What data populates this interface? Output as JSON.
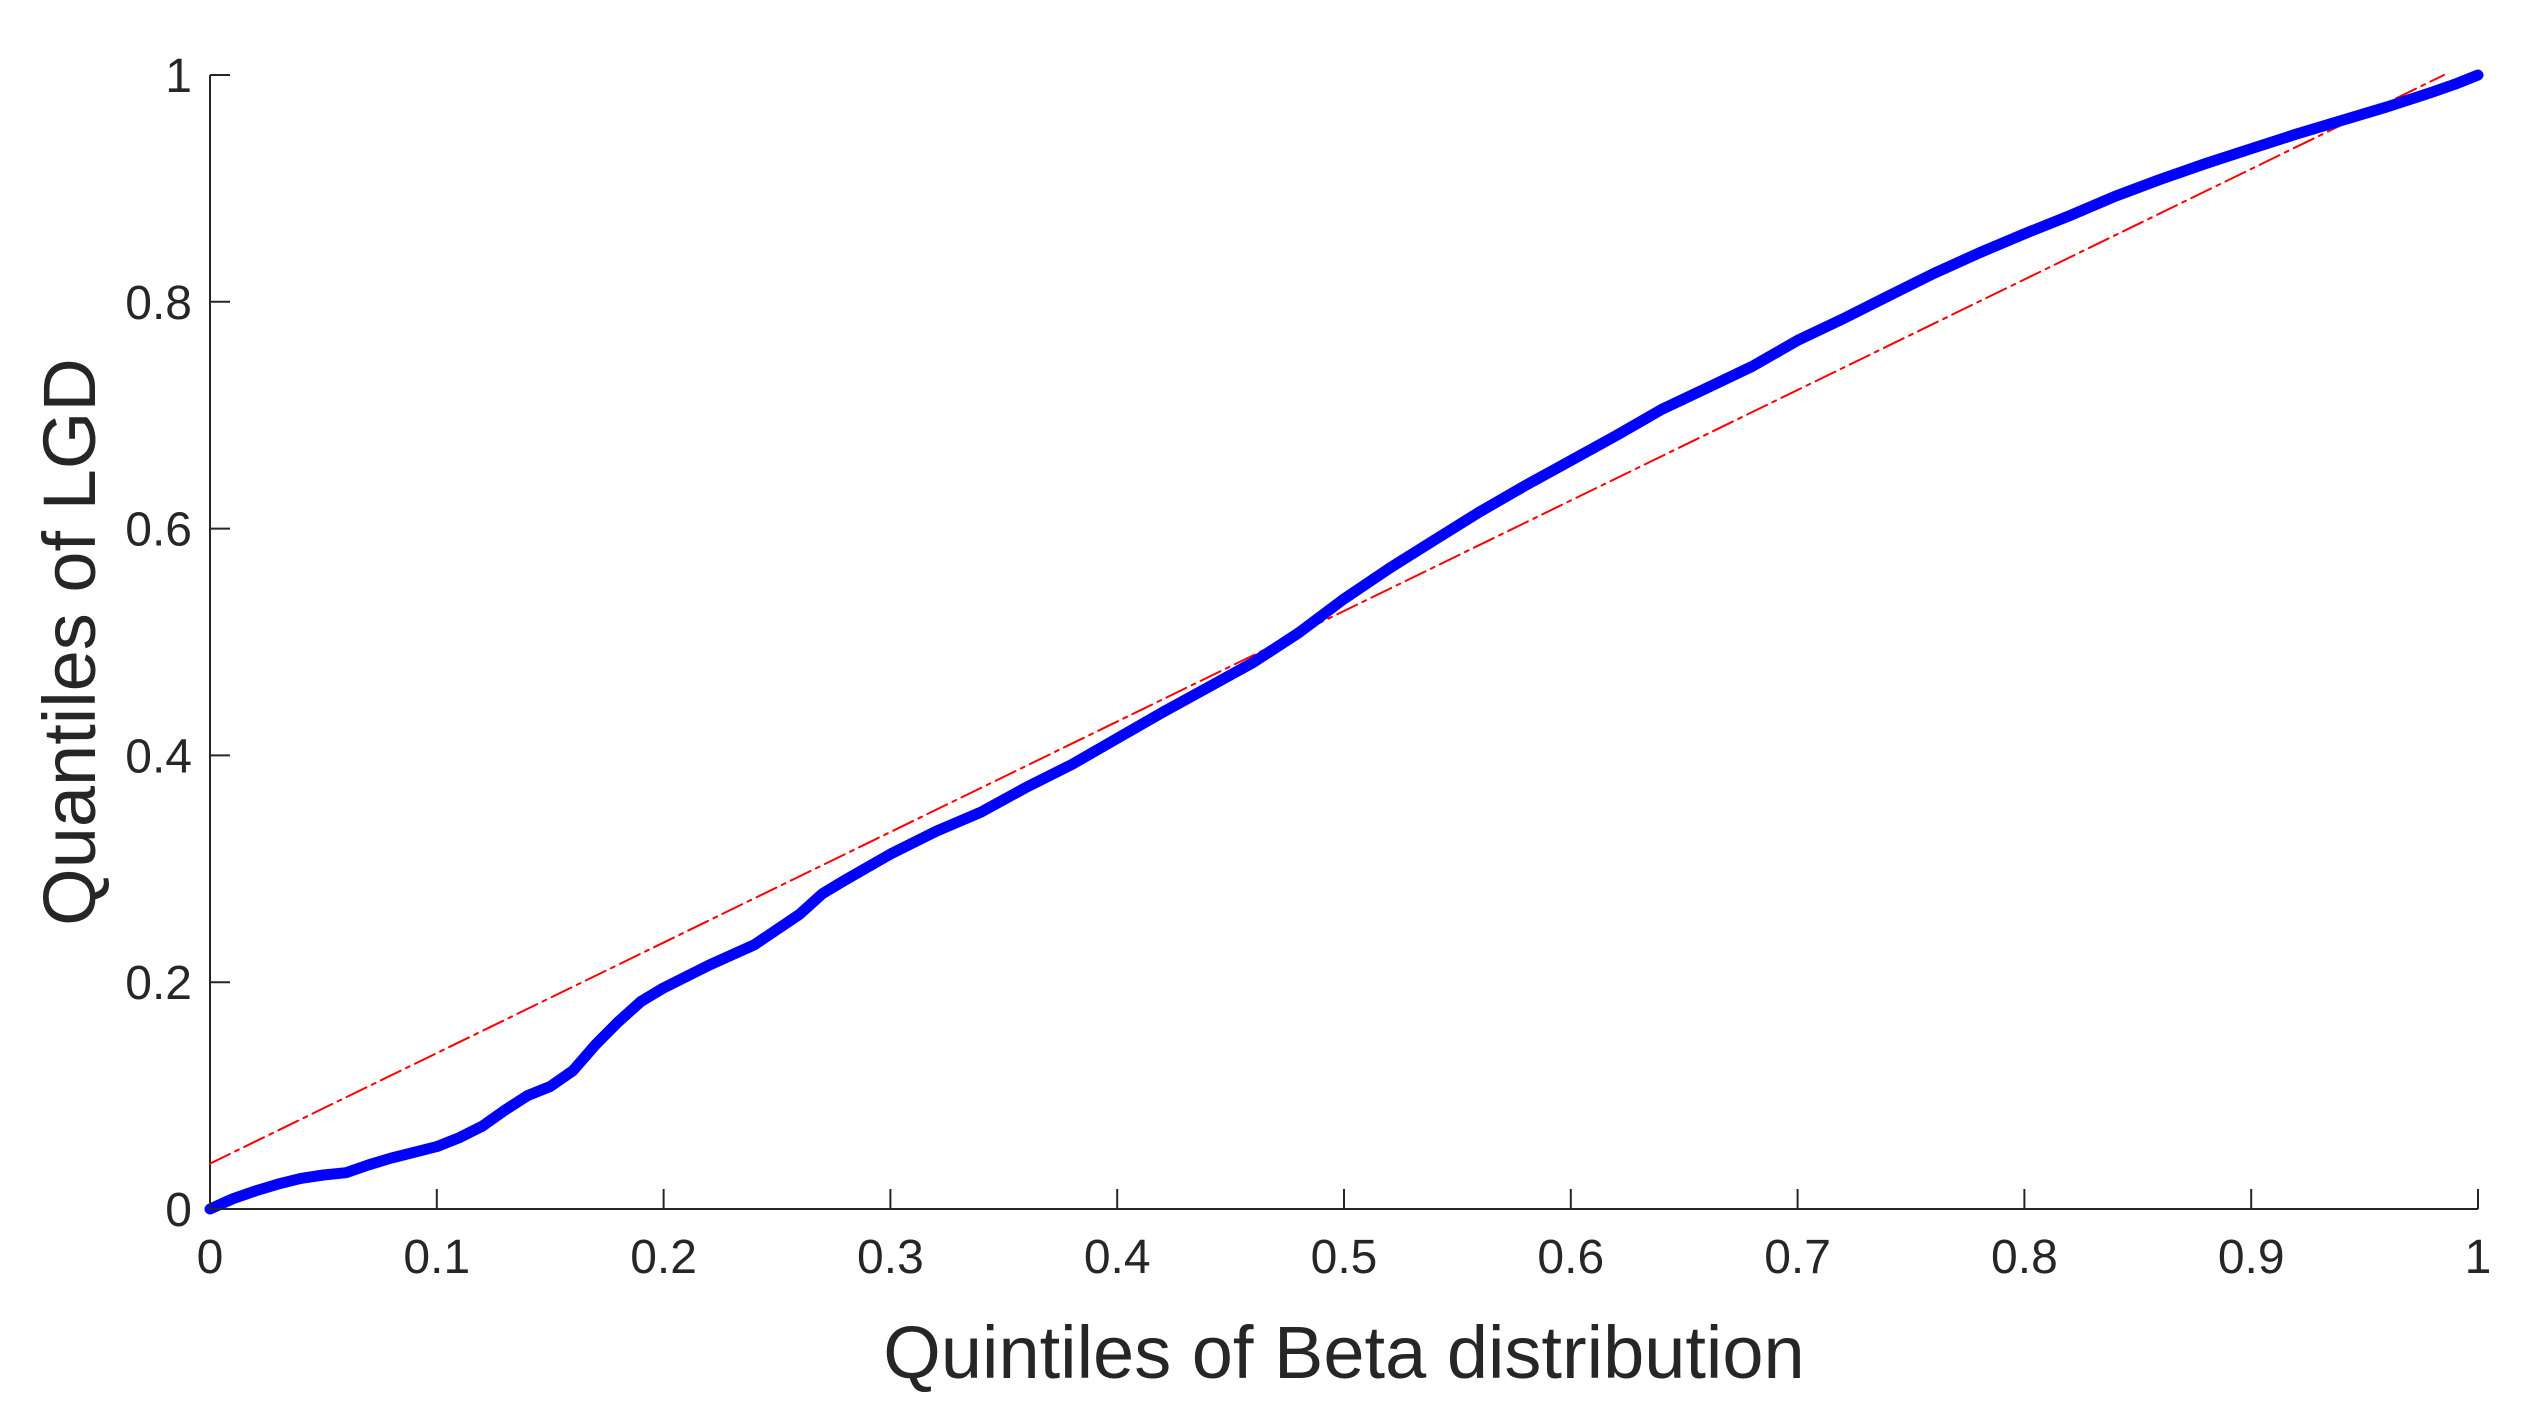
{
  "chart_data": {
    "type": "line",
    "title": "",
    "xlabel": "Quintiles of Beta distribution",
    "ylabel": "Quantiles of LGD",
    "xlim": [
      0,
      1
    ],
    "ylim": [
      0,
      1
    ],
    "x_ticks": [
      0,
      0.1,
      0.2,
      0.3,
      0.4,
      0.5,
      0.6,
      0.7,
      0.8,
      0.9,
      1
    ],
    "x_tick_labels": [
      "0",
      "0.1",
      "0.2",
      "0.3",
      "0.4",
      "0.5",
      "0.6",
      "0.7",
      "0.8",
      "0.9",
      "1"
    ],
    "y_ticks": [
      0,
      0.2,
      0.4,
      0.6,
      0.8,
      1
    ],
    "y_tick_labels": [
      "0",
      "0.2",
      "0.4",
      "0.6",
      "0.8",
      "1"
    ],
    "grid": false,
    "legend": "none",
    "series": [
      {
        "style": "thick solid",
        "color": "#0000ff",
        "x": [
          0,
          0.01,
          0.02,
          0.03,
          0.04,
          0.05,
          0.06,
          0.07,
          0.08,
          0.09,
          0.1,
          0.11,
          0.12,
          0.13,
          0.14,
          0.15,
          0.16,
          0.17,
          0.18,
          0.19,
          0.2,
          0.22,
          0.24,
          0.26,
          0.27,
          0.28,
          0.3,
          0.32,
          0.34,
          0.36,
          0.38,
          0.4,
          0.42,
          0.44,
          0.46,
          0.48,
          0.5,
          0.52,
          0.54,
          0.56,
          0.58,
          0.6,
          0.62,
          0.64,
          0.66,
          0.68,
          0.7,
          0.72,
          0.74,
          0.76,
          0.78,
          0.8,
          0.82,
          0.84,
          0.86,
          0.88,
          0.9,
          0.92,
          0.94,
          0.96,
          0.98,
          0.99,
          1
        ],
        "y": [
          0,
          0.009,
          0.016,
          0.022,
          0.027,
          0.03,
          0.032,
          0.039,
          0.045,
          0.05,
          0.055,
          0.063,
          0.073,
          0.087,
          0.1,
          0.108,
          0.122,
          0.145,
          0.165,
          0.183,
          0.195,
          0.215,
          0.233,
          0.26,
          0.278,
          0.29,
          0.313,
          0.333,
          0.35,
          0.372,
          0.392,
          0.415,
          0.438,
          0.46,
          0.482,
          0.508,
          0.538,
          0.565,
          0.59,
          0.615,
          0.638,
          0.66,
          0.682,
          0.705,
          0.724,
          0.743,
          0.766,
          0.785,
          0.805,
          0.825,
          0.843,
          0.86,
          0.876,
          0.893,
          0.908,
          0.922,
          0.935,
          0.948,
          0.96,
          0.972,
          0.985,
          0.992,
          1
        ]
      },
      {
        "style": "thin dash-dot reference",
        "color": "#ff0000",
        "x": [
          0,
          0.985
        ],
        "y": [
          0.04,
          1
        ]
      }
    ]
  }
}
